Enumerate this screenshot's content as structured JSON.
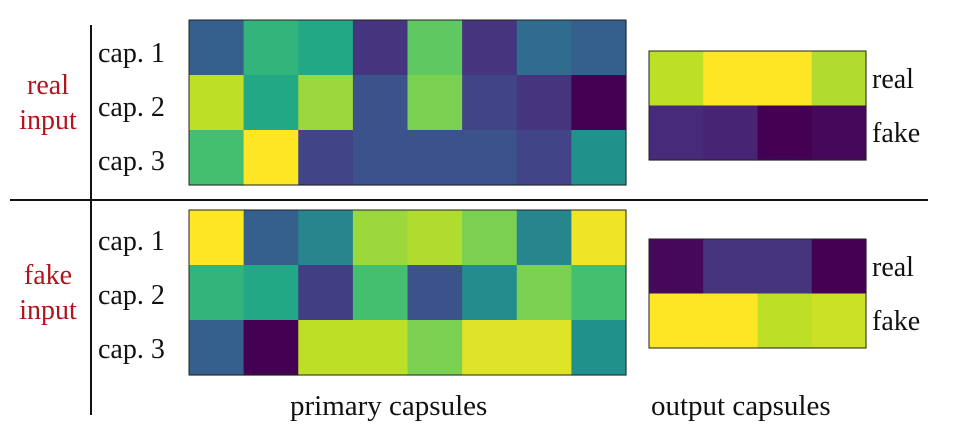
{
  "chart_data": [
    {
      "type": "heatmap",
      "panel": "real input",
      "group_label": [
        "real",
        "input"
      ],
      "matrix": "primary capsules",
      "rows": [
        "cap. 1",
        "cap. 2",
        "cap. 3"
      ],
      "values": [
        [
          0.3,
          0.65,
          0.6,
          0.15,
          0.75,
          0.15,
          0.35,
          0.3
        ],
        [
          0.9,
          0.6,
          0.85,
          0.25,
          0.8,
          0.2,
          0.15,
          0.0
        ],
        [
          0.7,
          1.0,
          0.2,
          0.25,
          0.25,
          0.25,
          0.2,
          0.5
        ]
      ]
    },
    {
      "type": "heatmap",
      "panel": "real input",
      "matrix": "output capsules",
      "rows": [
        "real",
        "fake"
      ],
      "values": [
        [
          0.9,
          1.0,
          1.0,
          0.88
        ],
        [
          0.12,
          0.1,
          0.0,
          0.02
        ]
      ]
    },
    {
      "type": "heatmap",
      "panel": "fake input",
      "group_label": [
        "fake",
        "input"
      ],
      "matrix": "primary capsules",
      "rows": [
        "cap. 1",
        "cap. 2",
        "cap. 3"
      ],
      "values": [
        [
          1.0,
          0.3,
          0.45,
          0.85,
          0.88,
          0.8,
          0.45,
          0.98
        ],
        [
          0.65,
          0.6,
          0.18,
          0.7,
          0.25,
          0.48,
          0.8,
          0.7
        ],
        [
          0.3,
          0.0,
          0.9,
          0.9,
          0.8,
          0.95,
          0.95,
          0.5
        ]
      ]
    },
    {
      "type": "heatmap",
      "panel": "fake input",
      "matrix": "output capsules",
      "rows": [
        "real",
        "fake"
      ],
      "values": [
        [
          0.02,
          0.15,
          0.15,
          0.0
        ],
        [
          1.0,
          1.0,
          0.9,
          0.92
        ]
      ]
    }
  ],
  "colormap": "viridis",
  "footer": {
    "primary": "primary capsules",
    "output": "output capsules"
  }
}
